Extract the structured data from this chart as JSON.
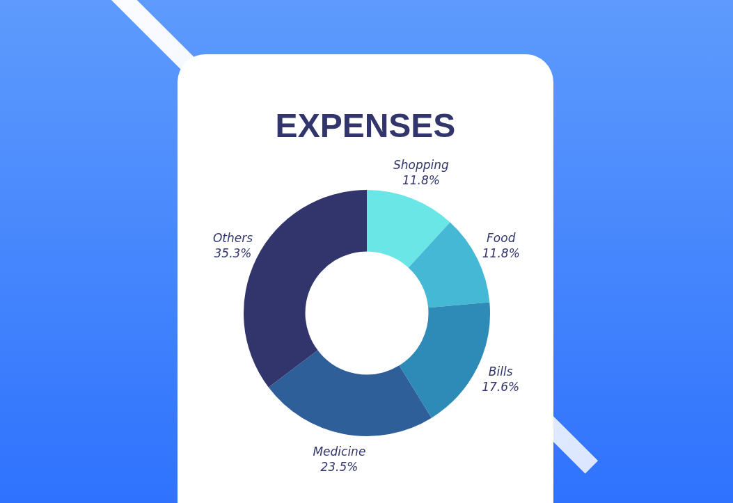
{
  "chart_data": {
    "type": "donut",
    "title": "EXPENSES",
    "categories": [
      "Shopping",
      "Food",
      "Bills",
      "Medicine",
      "Others"
    ],
    "values": [
      11.8,
      11.8,
      17.6,
      23.5,
      35.3
    ],
    "colors": [
      "#6be6e6",
      "#44b8d4",
      "#2e8bb8",
      "#2f5f99",
      "#31356b"
    ],
    "value_labels": [
      "11.8%",
      "11.8%",
      "17.6%",
      "23.5%",
      "35.3%"
    ],
    "legend": false
  }
}
